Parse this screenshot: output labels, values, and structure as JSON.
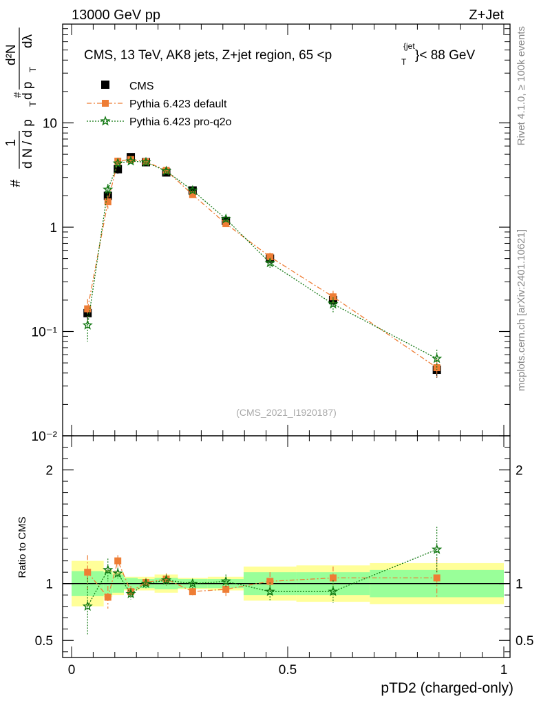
{
  "header": {
    "left": "13000 GeV pp",
    "right": "Z+Jet"
  },
  "side_labels": {
    "rivet": "Rivet 4.1.0, ≥ 100k events",
    "mcplots": "mcplots.cern.ch [arXiv:2401.10621]"
  },
  "main_title": {
    "prefix": "CMS, 13 TeV, AK8 jets, Z+jet region, 65 <p",
    "sup": "{jet",
    "sub": "T",
    "suffix": "}< 88 GeV"
  },
  "ylabel": {
    "hash1": "#",
    "one": "1",
    "dN": "d N / d p",
    "T1": "T",
    "hash2": "#",
    "d2N": "d²N",
    "dpT": "d p",
    "T2": "T",
    "dlambda": "dλ"
  },
  "watermark": "(CMS_2021_I1920187)",
  "legend": [
    {
      "name": "CMS",
      "marker": "square",
      "color": "#000000"
    },
    {
      "name": "Pythia 6.423 default",
      "marker": "square",
      "color": "#ee7d35"
    },
    {
      "name": "Pythia 6.423 pro-q2o",
      "marker": "star",
      "color": "#117711"
    }
  ],
  "colors": {
    "data": "#000000",
    "default": "#ee7d35",
    "proq2o": "#117711",
    "band_inner": "#99ff99",
    "band_outer": "#ffff99"
  },
  "chart_data": {
    "type": "scatter",
    "title": "CMS, 13 TeV, AK8 jets, Z+jet region, 65 <p_T^{jet}< 88 GeV",
    "xlabel": "pTD2 (charged-only)",
    "ylabel": "1/dN/dpT dN/dpT dlambda",
    "xlim": [
      0,
      1
    ],
    "ylim": [
      0.01,
      100
    ],
    "yscale": "log",
    "x_ticks": [
      "0",
      "0.5",
      "1"
    ],
    "y_ticks": [
      "10⁻²",
      "10⁻¹",
      "1",
      "10"
    ],
    "bins": [
      [
        0,
        0.0743
      ],
      [
        0.0743,
        0.0943
      ],
      [
        0.0943,
        0.121
      ],
      [
        0.121,
        0.153
      ],
      [
        0.153,
        0.192
      ],
      [
        0.192,
        0.246
      ],
      [
        0.246,
        0.315
      ],
      [
        0.315,
        0.398
      ],
      [
        0.398,
        0.52
      ],
      [
        0.52,
        0.69
      ],
      [
        0.69,
        1.0
      ]
    ],
    "x": [
      0.037,
      0.084,
      0.107,
      0.137,
      0.172,
      0.219,
      0.28,
      0.357,
      0.459,
      0.605,
      0.845
    ],
    "series": [
      {
        "name": "CMS",
        "values": [
          0.15,
          2.0,
          3.6,
          4.7,
          4.2,
          3.35,
          2.25,
          1.15,
          0.5,
          0.2,
          0.043
        ],
        "errors": [
          0.02,
          0.25,
          0.35,
          0.3,
          0.25,
          0.2,
          0.15,
          0.1,
          0.05,
          0.025,
          0.007
        ]
      },
      {
        "name": "Pythia 6.423 default",
        "values": [
          0.165,
          1.75,
          4.3,
          4.45,
          4.25,
          3.5,
          2.05,
          1.08,
          0.52,
          0.215,
          0.045
        ],
        "errors": [
          0.04,
          0.25,
          0.35,
          0.25,
          0.2,
          0.2,
          0.12,
          0.08,
          0.05,
          0.03,
          0.01
        ]
      },
      {
        "name": "Pythia 6.423 pro-q2o",
        "values": [
          0.115,
          2.3,
          4.1,
          4.3,
          4.2,
          3.45,
          2.25,
          1.2,
          0.455,
          0.183,
          0.055
        ],
        "errors": [
          0.035,
          0.3,
          0.35,
          0.25,
          0.2,
          0.2,
          0.12,
          0.08,
          0.05,
          0.03,
          0.012
        ]
      }
    ],
    "ratio": {
      "ylabel": "Ratio to CMS",
      "ylim": [
        0.35,
        2.3
      ],
      "y_ticks": [
        "0.5",
        "1",
        "2"
      ],
      "band_inner": [
        0.11,
        0.1,
        0.08,
        0.05,
        0.04,
        0.05,
        0.04,
        0.04,
        0.1,
        0.1,
        0.12
      ],
      "band_outer": [
        0.2,
        0.12,
        0.1,
        0.06,
        0.06,
        0.08,
        0.05,
        0.06,
        0.15,
        0.16,
        0.18
      ],
      "series": [
        {
          "name": "Pythia 6.423 default",
          "values": [
            1.1,
            0.88,
            1.2,
            0.93,
            1.01,
            1.04,
            0.93,
            0.95,
            1.02,
            1.05,
            1.05
          ],
          "errors": [
            0.15,
            0.1,
            0.05,
            0.05,
            0.04,
            0.05,
            0.04,
            0.06,
            0.08,
            0.1,
            0.18
          ]
        },
        {
          "name": "Pythia 6.423 pro-q2o",
          "values": [
            0.8,
            1.12,
            1.09,
            0.91,
            1.0,
            1.03,
            1.0,
            1.02,
            0.93,
            0.93,
            1.3
          ],
          "errors": [
            0.25,
            0.1,
            0.05,
            0.05,
            0.04,
            0.05,
            0.04,
            0.06,
            0.08,
            0.1,
            0.2
          ]
        }
      ]
    }
  }
}
